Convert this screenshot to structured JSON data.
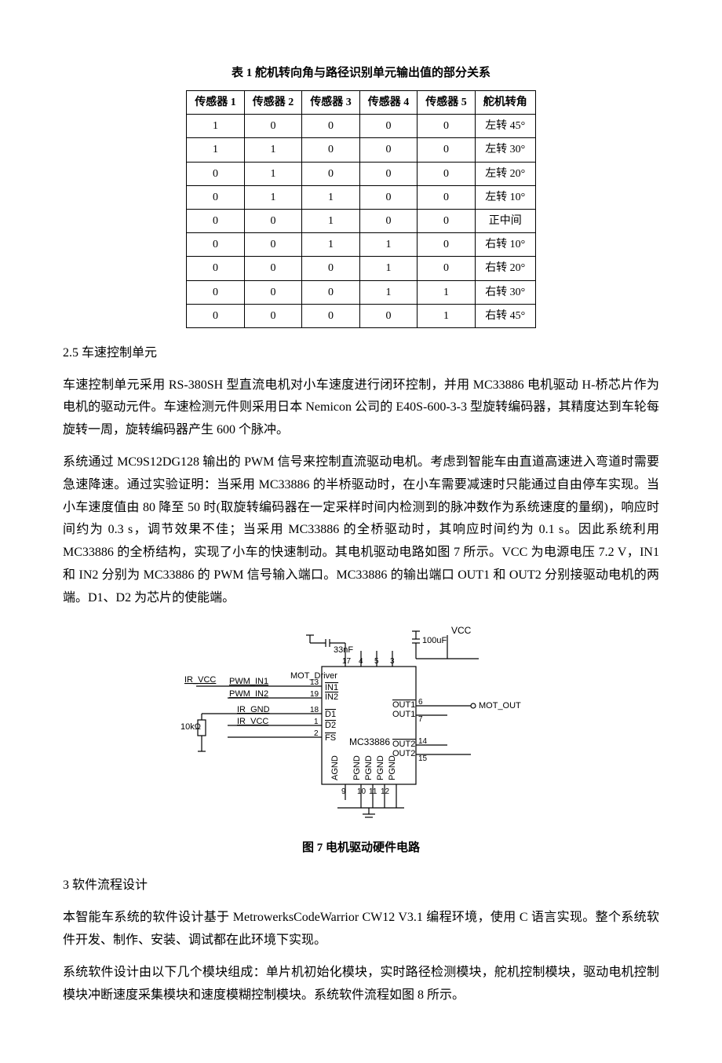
{
  "table1": {
    "caption": "表 1  舵机转向角与路径识别单元输出值的部分关系",
    "headers": [
      "传感器 1",
      "传感器 2",
      "传感器 3",
      "传感器 4",
      "传感器 5",
      "舵机转角"
    ],
    "rows": [
      [
        "1",
        "0",
        "0",
        "0",
        "0",
        "左转 45°"
      ],
      [
        "1",
        "1",
        "0",
        "0",
        "0",
        "左转 30°"
      ],
      [
        "0",
        "1",
        "0",
        "0",
        "0",
        "左转 20°"
      ],
      [
        "0",
        "1",
        "1",
        "0",
        "0",
        "左转 10°"
      ],
      [
        "0",
        "0",
        "1",
        "0",
        "0",
        "正中间"
      ],
      [
        "0",
        "0",
        "1",
        "1",
        "0",
        "右转 10°"
      ],
      [
        "0",
        "0",
        "0",
        "1",
        "0",
        "右转 20°"
      ],
      [
        "0",
        "0",
        "0",
        "1",
        "1",
        "右转 30°"
      ],
      [
        "0",
        "0",
        "0",
        "0",
        "1",
        "右转 45°"
      ]
    ]
  },
  "section25": {
    "heading": "2.5  车速控制单元",
    "p1": "车速控制单元采用 RS-380SH 型直流电机对小车速度进行闭环控制，并用 MC33886 电机驱动 H-桥芯片作为电机的驱动元件。车速检测元件则采用日本 Nemicon 公司的 E40S-600-3-3 型旋转编码器，其精度达到车轮每旋转一周，旋转编码器产生 600 个脉冲。",
    "p2": "系统通过 MC9S12DG128 输出的 PWM 信号来控制直流驱动电机。考虑到智能车由直道高速进入弯道时需要急速降速。通过实验证明：当采用 MC33886 的半桥驱动时，在小车需要减速时只能通过自由停车实现。当小车速度值由 80 降至 50 时(取旋转编码器在一定采样时间内检测到的脉冲数作为系统速度的量纲)，响应时间约为 0.3 s，调节效果不佳；当采用 MC33886 的全桥驱动时，其响应时间约为 0.1 s。因此系统利用 MC33886 的全桥结构，实现了小车的快速制动。其电机驱动电路如图 7 所示。VCC 为电源电压 7.2  V，IN1 和 IN2 分别为 MC33886 的 PWM 信号输入端口。MC33886 的输出端口 OUT1 和 OUT2 分别接驱动电机的两端。D1、D2 为芯片的使能端。"
  },
  "figure7": {
    "caption": "图 7  电机驱动硬件电路",
    "labels": {
      "vcc": "VCC",
      "ir_vcc": "IR_VCC",
      "pwm_in1": "PWM_IN1",
      "pwm_in2": "PWM_IN2",
      "ir_gnd": "IR_GND",
      "ir_vcc2": "IR_VCC",
      "r10k": "10kΩ",
      "mot_driver": "MOT_Driver",
      "mc33886": "MC33886",
      "in1": "IN1",
      "in2": "IN2",
      "d1": "D1",
      "d2": "D2",
      "fs": "FS",
      "agnd": "AGND",
      "pgnd": "PGND",
      "out1": "OUT1",
      "out2": "OUT2",
      "mot_out": "MOT_OUT",
      "c33": "33nF",
      "c100": "100uF"
    },
    "pins": {
      "p13": "13",
      "p19": "19",
      "p18": "18",
      "p1": "1",
      "p2": "2",
      "p17": "17",
      "p4": "4",
      "p5a": "",
      "p5": "5",
      "p3": "3",
      "p6": "6",
      "p7": "7",
      "p14": "14",
      "p15": "15",
      "p9": "9",
      "p10": "10",
      "p11": "11",
      "p12": "12"
    }
  },
  "section3": {
    "heading": "3  软件流程设计",
    "p1": "本智能车系统的软件设计基于 MetrowerksCodeWarrior  CW12  V3.1 编程环境，使用 C 语言实现。整个系统软件开发、制作、安装、调试都在此环境下实现。",
    "p2": "系统软件设计由以下几个模块组成：单片机初始化模块，实时路径检测模块，舵机控制模块，驱动电机控制模块冲断速度采集模块和速度模糊控制模块。系统软件流程如图 8 所示。"
  }
}
